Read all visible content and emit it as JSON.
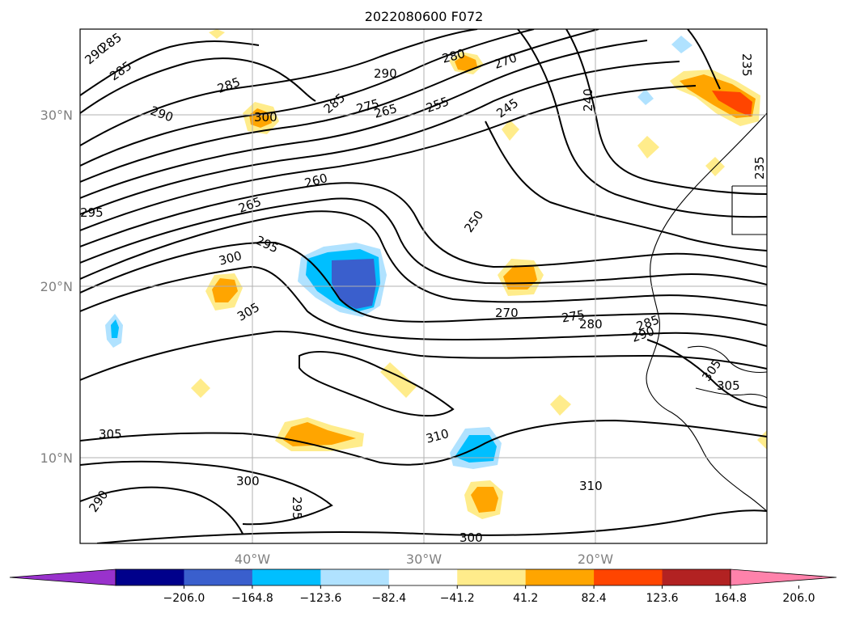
{
  "title": "2022080600 F072",
  "axes": {
    "lat_ticks": [
      "30°N",
      "20°N",
      "10°N"
    ],
    "lon_ticks": [
      "40°W",
      "30°W",
      "20°W"
    ],
    "grid": true
  },
  "contour_labels": [
    "290",
    "285",
    "285",
    "285",
    "290",
    "300",
    "285",
    "290",
    "280",
    "270",
    "275",
    "265",
    "255",
    "245",
    "240",
    "235",
    "235",
    "260",
    "265",
    "295",
    "250",
    "295",
    "300",
    "305",
    "270",
    "275",
    "280",
    "285",
    "290",
    "305",
    "305",
    "305",
    "310",
    "300",
    "295",
    "300",
    "310",
    "290"
  ],
  "colorbar": {
    "ticks": [
      "−206.0",
      "−164.8",
      "−123.6",
      "−82.4",
      "−41.2",
      "41.2",
      "82.4",
      "123.6",
      "164.8",
      "206.0"
    ],
    "colors": [
      "#9932cc",
      "#00008b",
      "#3a5fcd",
      "#00bfff",
      "#b0e2ff",
      "#ffffff",
      "#ffec8b",
      "#ffa500",
      "#ff4500",
      "#b22222",
      "#ff82ab"
    ],
    "extend": "both"
  },
  "colors": {
    "contour": "#000000",
    "coast": "#000000",
    "grid": "#b0b0b0"
  }
}
